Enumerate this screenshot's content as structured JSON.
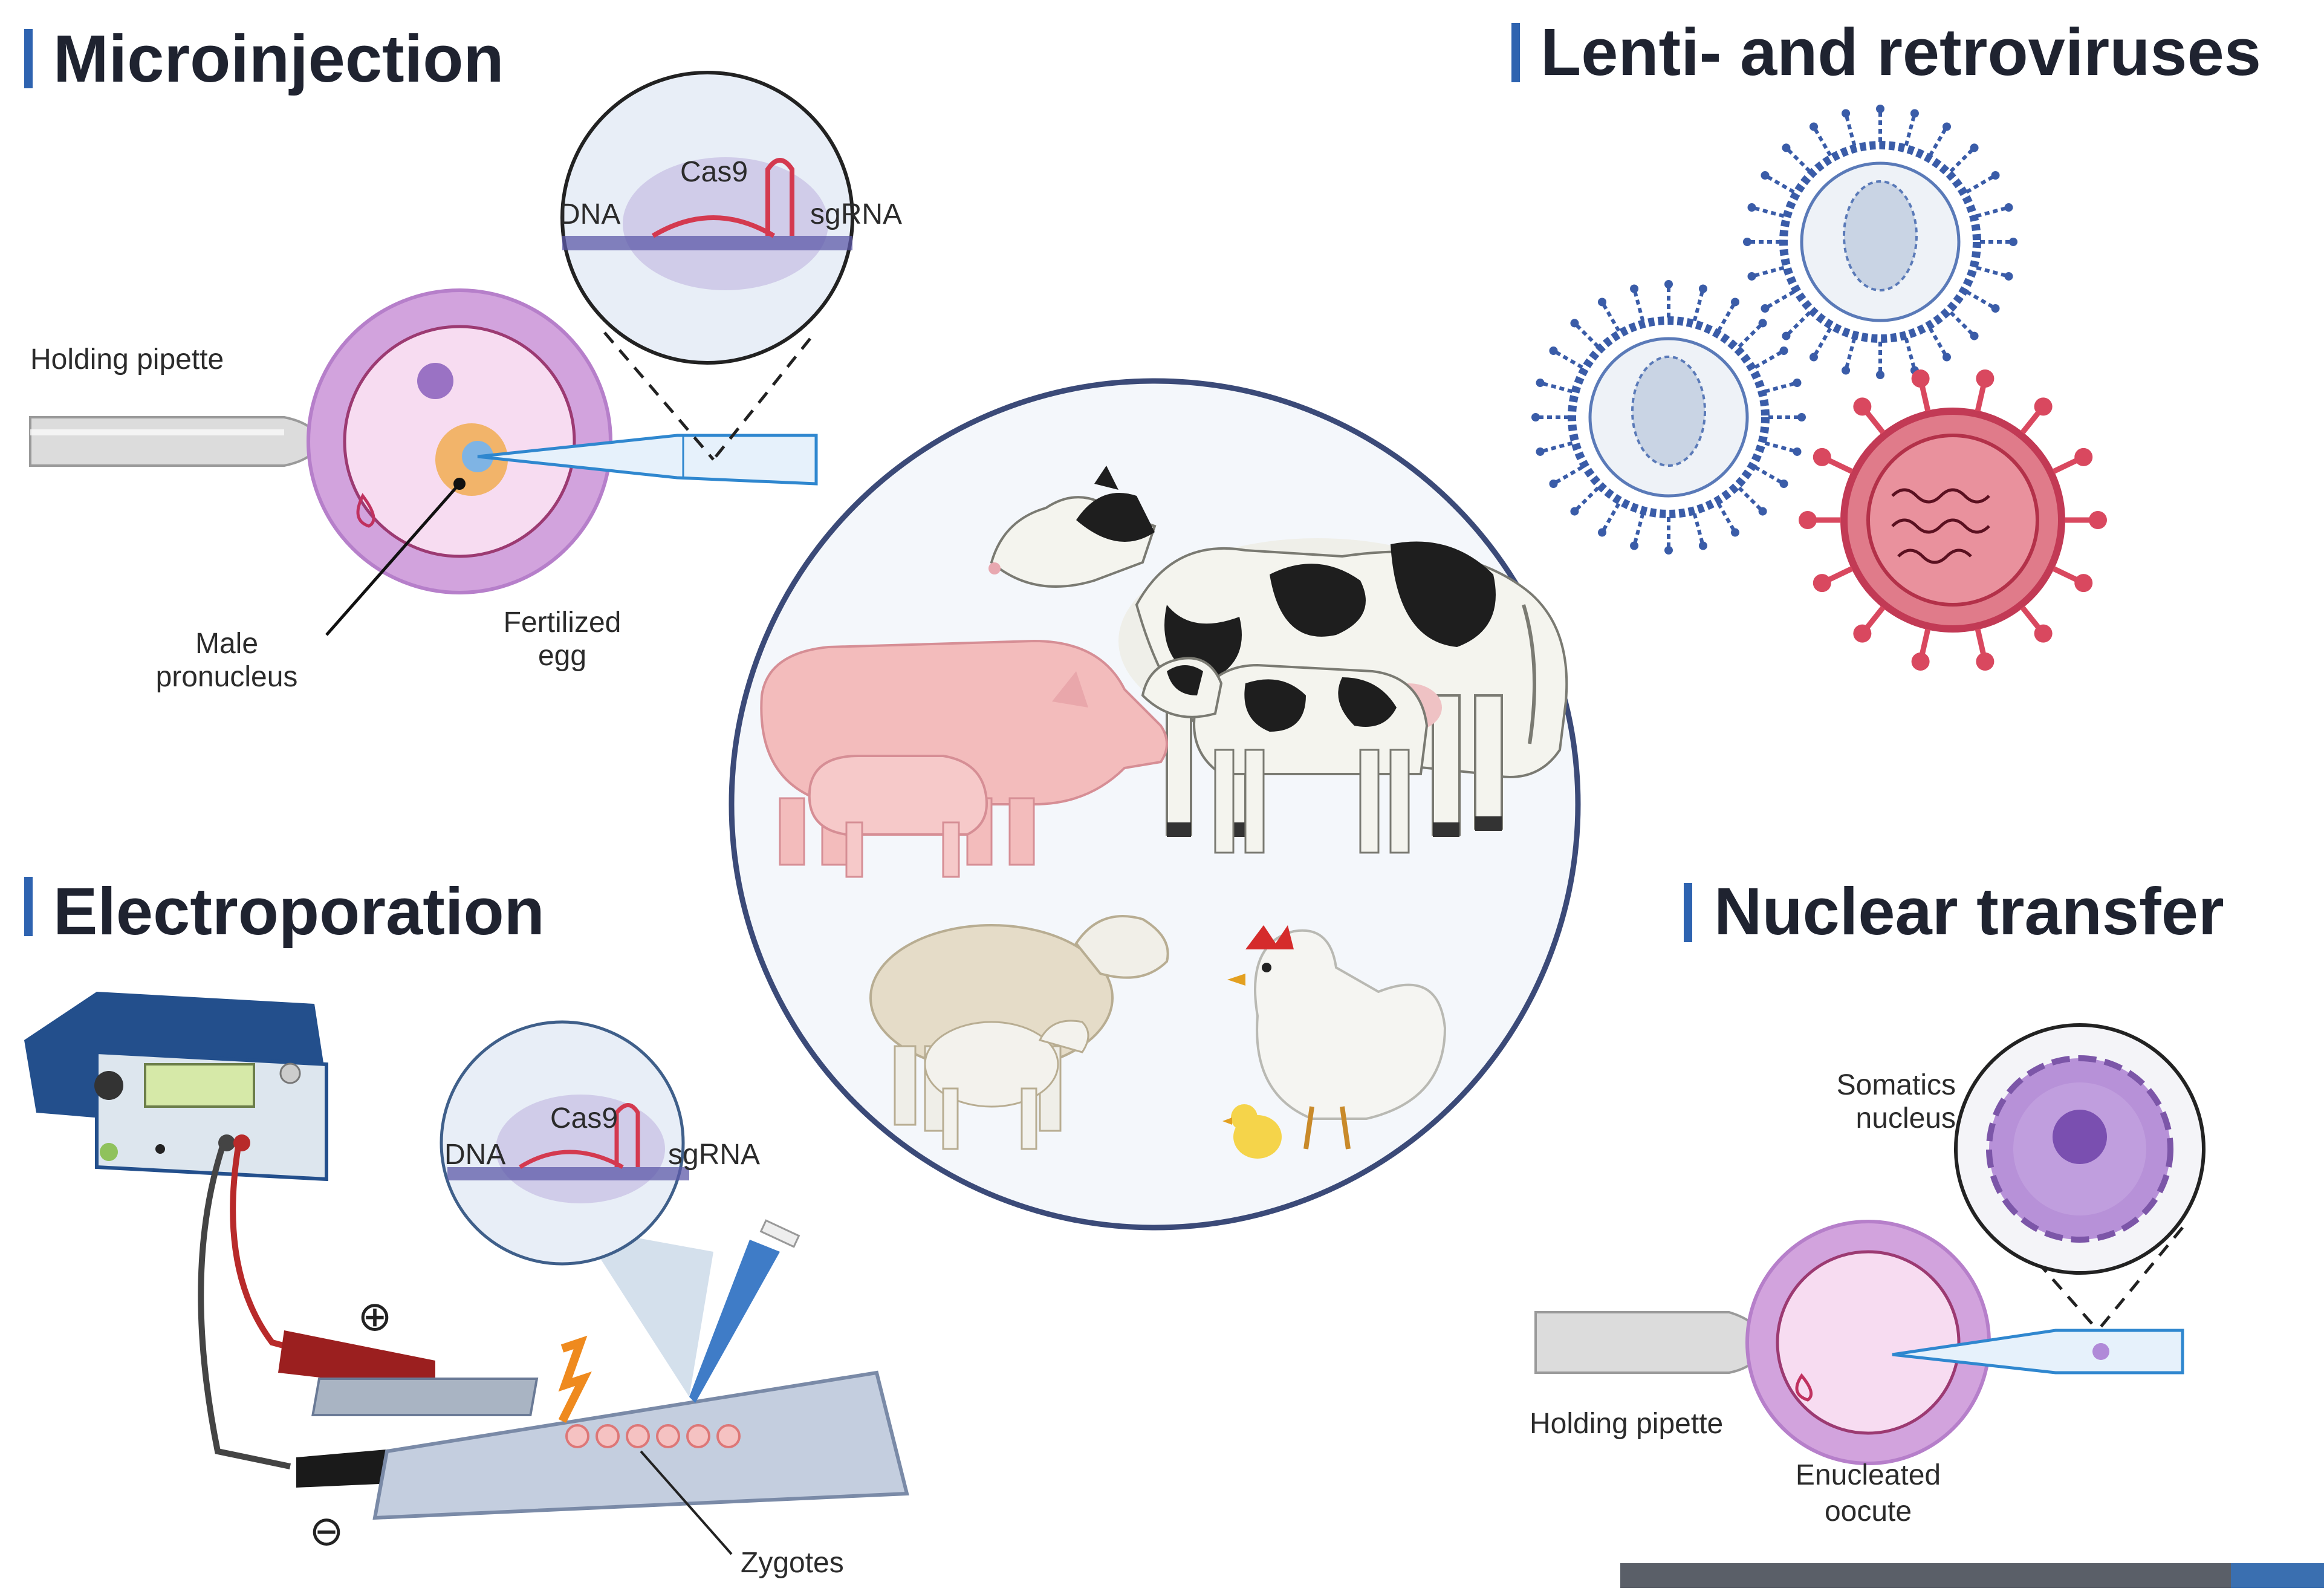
{
  "sections": {
    "microinjection": {
      "title": "Microinjection",
      "labels": {
        "cas9": "Cas9",
        "dna": "DNA",
        "sgrna": "sgRNA",
        "holding_pipette": "Holding pipette",
        "male_line1": "Male",
        "male_line2": "pronucleus",
        "fertilized_line1": "Fertilized",
        "fertilized_line2": "egg"
      }
    },
    "lentiviruses": {
      "title": "Lenti- and retroviruses"
    },
    "electroporation": {
      "title": "Electroporation",
      "labels": {
        "cas9": "Cas9",
        "dna": "DNA",
        "sgrna": "sgRNA",
        "plus": "⊕",
        "minus": "⊖",
        "zygotes": "Zygotes"
      }
    },
    "nuclear_transfer": {
      "title": "Nuclear transfer",
      "labels": {
        "somatics_line1": "Somatics",
        "somatics_line2": "nucleus",
        "holding_pipette": "Holding pipette",
        "enucleated_line1": "Enucleated",
        "enucleated_line2": "oocute"
      }
    }
  },
  "colors": {
    "accent_bar": "#2e63b0",
    "title": "#1f2330",
    "cell_outer": "#c48ad3",
    "cell_inner": "#f5d6ef",
    "virus_blue": "#3a5ca8",
    "virus_red": "#d9485f",
    "circle_border": "#3b4a78"
  }
}
